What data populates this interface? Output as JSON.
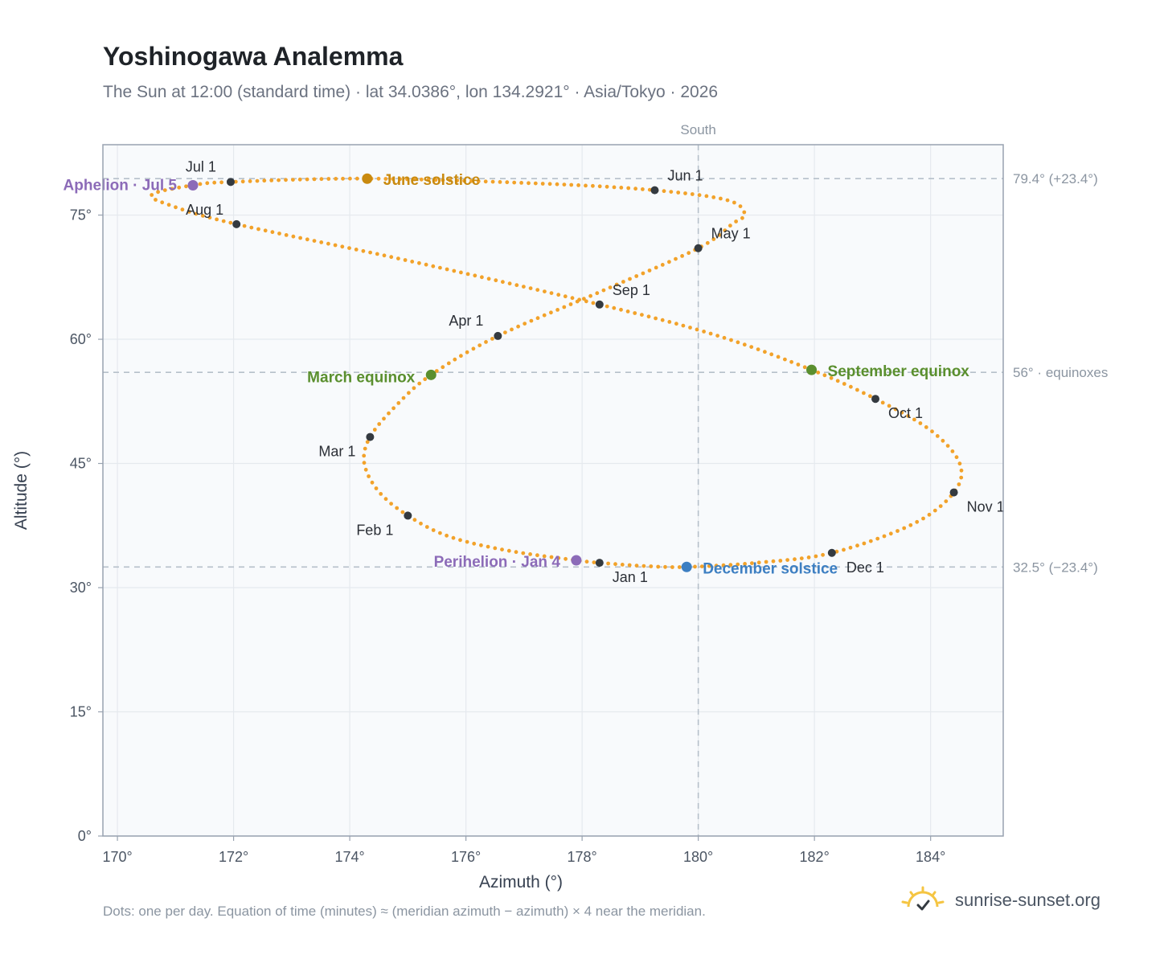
{
  "title": "Yoshinogawa Analemma",
  "subtitle": "The Sun at 12:00 (standard time) · lat 34.0386°, lon 134.2921° · Asia/Tokyo · 2026",
  "footnote": "Dots: one per day. Equation of time (minutes) ≈ (meridian azimuth − azimuth) × 4 near the meridian.",
  "brand": "sunrise-sunset.org",
  "colors": {
    "analemma": "#f2a22a",
    "month_dot": "#343a40",
    "equinox": "#5a8f2e",
    "june_solstice": "#c98a0f",
    "december_solstice": "#3d7fc2",
    "apsis": "#8c6bb8",
    "plot_bg": "#f8fafc",
    "grid": "#e5e9ee",
    "ref_line": "#b6c0ca"
  },
  "chart_data": {
    "type": "scatter",
    "title": "Yoshinogawa Analemma",
    "xlabel": "Azimuth (°)",
    "ylabel": "Altitude (°)",
    "xlim": [
      169.75,
      185.25
    ],
    "ylim": [
      0,
      83.5
    ],
    "x_ticks": [
      170,
      172,
      174,
      176,
      178,
      180,
      182,
      184
    ],
    "x_tick_labels": [
      "170°",
      "172°",
      "174°",
      "176°",
      "178°",
      "180°",
      "182°",
      "184°"
    ],
    "y_ticks": [
      0,
      15,
      30,
      45,
      60,
      75
    ],
    "y_tick_labels": [
      "0°",
      "15°",
      "30°",
      "45°",
      "60°",
      "75°"
    ],
    "grid": true,
    "meridian": {
      "x": 180,
      "label": "South"
    },
    "reference_lines": [
      {
        "y": 79.4,
        "label": "79.4° (+23.4°)"
      },
      {
        "y": 56,
        "label": "56° · equinoxes"
      },
      {
        "y": 32.5,
        "label": "32.5° (−23.4°)"
      }
    ],
    "month_points": [
      {
        "label": "Jan 1",
        "x": 178.3,
        "y": 33.0
      },
      {
        "label": "Feb 1",
        "x": 175.0,
        "y": 38.7
      },
      {
        "label": "Mar 1",
        "x": 174.35,
        "y": 48.2
      },
      {
        "label": "Apr 1",
        "x": 176.55,
        "y": 60.4
      },
      {
        "label": "May 1",
        "x": 180.0,
        "y": 71.0
      },
      {
        "label": "Jun 1",
        "x": 179.25,
        "y": 78.0
      },
      {
        "label": "Jul 1",
        "x": 171.95,
        "y": 79.0
      },
      {
        "label": "Aug 1",
        "x": 172.05,
        "y": 73.9
      },
      {
        "label": "Sep 1",
        "x": 178.3,
        "y": 64.2
      },
      {
        "label": "Oct 1",
        "x": 183.05,
        "y": 52.8
      },
      {
        "label": "Nov 1",
        "x": 184.4,
        "y": 41.5
      },
      {
        "label": "Dec 1",
        "x": 182.3,
        "y": 34.2
      }
    ],
    "events": [
      {
        "label": "March equinox",
        "x": 175.4,
        "y": 55.7,
        "kind": "equinox"
      },
      {
        "label": "September equinox",
        "x": 181.95,
        "y": 56.3,
        "kind": "equinox"
      },
      {
        "label": "June solstice",
        "x": 174.3,
        "y": 79.4,
        "kind": "june_solstice"
      },
      {
        "label": "December solstice",
        "x": 179.8,
        "y": 32.5,
        "kind": "december_solstice"
      },
      {
        "label": "Aphelion · Jul 5",
        "x": 171.3,
        "y": 78.6,
        "kind": "apsis"
      },
      {
        "label": "Perihelion · Jan 4",
        "x": 177.9,
        "y": 33.3,
        "kind": "apsis"
      }
    ],
    "analemma_trace": [
      {
        "x": 179.8,
        "y": 32.5
      },
      {
        "x": 179.1,
        "y": 32.6
      },
      {
        "x": 178.3,
        "y": 33.0
      },
      {
        "x": 177.9,
        "y": 33.3
      },
      {
        "x": 176.7,
        "y": 34.5
      },
      {
        "x": 175.7,
        "y": 36.2
      },
      {
        "x": 175.0,
        "y": 38.7
      },
      {
        "x": 174.5,
        "y": 41.6
      },
      {
        "x": 174.25,
        "y": 45.0
      },
      {
        "x": 174.35,
        "y": 48.2
      },
      {
        "x": 174.8,
        "y": 52.0
      },
      {
        "x": 175.4,
        "y": 55.7
      },
      {
        "x": 176.55,
        "y": 60.4
      },
      {
        "x": 178.3,
        "y": 65.7
      },
      {
        "x": 180.0,
        "y": 71.0
      },
      {
        "x": 180.6,
        "y": 74.0
      },
      {
        "x": 180.8,
        "y": 75.1
      },
      {
        "x": 180.5,
        "y": 76.8
      },
      {
        "x": 179.25,
        "y": 78.0
      },
      {
        "x": 177.3,
        "y": 78.8
      },
      {
        "x": 174.3,
        "y": 79.4
      },
      {
        "x": 171.95,
        "y": 79.0
      },
      {
        "x": 171.3,
        "y": 78.6
      },
      {
        "x": 170.6,
        "y": 77.5
      },
      {
        "x": 170.9,
        "y": 76.2
      },
      {
        "x": 172.05,
        "y": 73.9
      },
      {
        "x": 175.0,
        "y": 69.5
      },
      {
        "x": 178.3,
        "y": 64.2
      },
      {
        "x": 180.3,
        "y": 60.5
      },
      {
        "x": 181.95,
        "y": 56.3
      },
      {
        "x": 183.05,
        "y": 52.8
      },
      {
        "x": 184.0,
        "y": 49.0
      },
      {
        "x": 184.5,
        "y": 45.0
      },
      {
        "x": 184.4,
        "y": 41.5
      },
      {
        "x": 183.7,
        "y": 37.7
      },
      {
        "x": 182.3,
        "y": 34.2
      },
      {
        "x": 181.0,
        "y": 33.0
      },
      {
        "x": 179.8,
        "y": 32.5
      }
    ]
  }
}
